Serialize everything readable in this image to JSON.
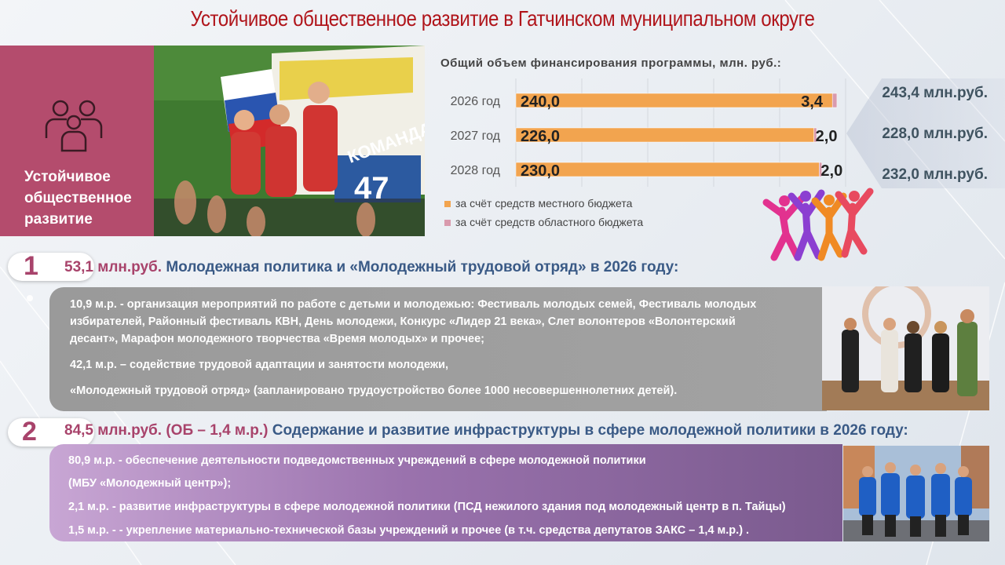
{
  "page": {
    "title": "Устойчивое общественное развитие в Гатчинском муниципальном округе"
  },
  "banner": {
    "title": "Устойчивое общественное развитие",
    "subtitle": "в Гатчинском муниципальном округе",
    "icon": "people-group-icon",
    "color": "#b44c6d"
  },
  "chart": {
    "heading": "Общий объем финансирования программы, млн. руб.:",
    "legend": [
      {
        "label": "за счёт средств местного бюджета",
        "color": "#f2a44f"
      },
      {
        "label": "за счёт средств областного бюджета",
        "color": "#d99aad"
      }
    ],
    "totals": [
      "243,4 млн.руб.",
      "228,0 млн.руб.",
      "232,0 млн.руб."
    ]
  },
  "chart_data": {
    "type": "bar",
    "orientation": "horizontal",
    "stacked": true,
    "categories": [
      "2026 год",
      "2027 год",
      "2028 год"
    ],
    "series": [
      {
        "name": "за счёт средств местного бюджета",
        "values": [
          240.0,
          226.0,
          230.0
        ],
        "labels": [
          "240,0",
          "226,0",
          "230,0"
        ]
      },
      {
        "name": "за счёт средств областного бюджета",
        "values": [
          3.4,
          2.0,
          2.0
        ],
        "labels": [
          "3,4",
          "2,0",
          "2,0"
        ]
      }
    ],
    "xlim": [
      0,
      250
    ],
    "grid": true,
    "legend_position": "bottom-left"
  },
  "sections": [
    {
      "number": "1",
      "amount": "53,1 млн.руб.",
      "heading": "Молодежная политика и «Молодежный трудовой отряд» в 2026 году:",
      "lines": [
        "10,9 м.р. - организация мероприятий по работе с детьми и молодежью: Фестиваль молодых семей, Фестиваль молодых",
        "избирателей, Районный фестиваль КВН, День молодежи, Конкурс «Лидер 21 века», Слет волонтеров «Волонтерский",
        "десант», Марафон молодежного творчества «Время молодых» и прочее;",
        "42,1 м.р. – содействие трудовой адаптации и занятости молодежи,",
        "«Молодежный трудовой отряд» (запланировано трудоустройство более 1000 несовершеннолетних детей)."
      ]
    },
    {
      "number": "2",
      "amount": "84,5 млн.руб. (ОБ – 1,4 м.р.)",
      "heading": "Содержание и развитие инфраструктуры в сфере молодежной политики в 2026 году:",
      "lines": [
        "80,9 м.р. - обеспечение деятельности подведомственных учреждений в сфере молодежной политики",
        "(МБУ «Молодежный центр»);",
        "2,1 м.р. - развитие инфраструктуры в сфере молодежной политики (ПСД нежилого здания под молодежный центр в п. Тайцы)",
        "1,5 м.р. - - укрепление материально-технической базы учреждений и прочее (в т.ч. средства депутатов ЗАКС – 1,4 м.р.) ."
      ]
    }
  ]
}
